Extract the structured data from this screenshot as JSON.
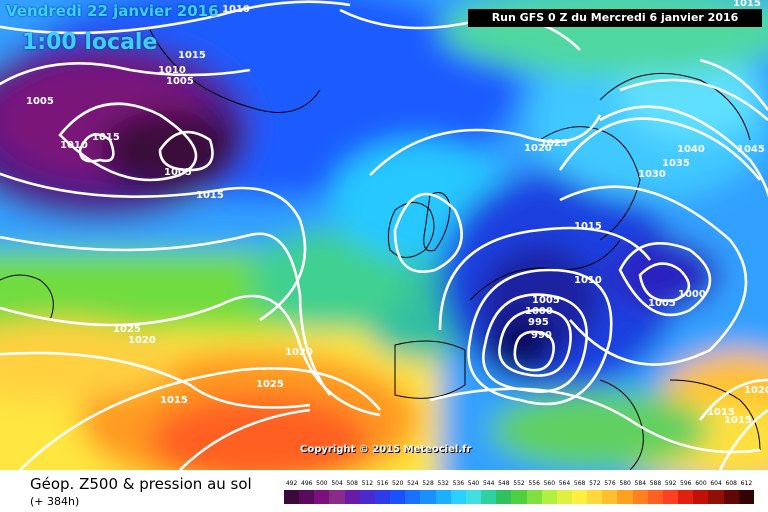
{
  "header": {
    "date_label": "Vendredi 22 janvier 2016",
    "time_label": "1:00 locale",
    "run_label": "Run GFS 0 Z du Mercredi 6 janvier 2016"
  },
  "copyright": "Copyright © 2015 Meteociel.fr",
  "footer": {
    "title": "Géop. Z500 & pression au sol",
    "subtitle": "(+ 384h)"
  },
  "isobar_labels": [
    "1010",
    "1015",
    "1010",
    "1005",
    "1005",
    "1010",
    "1015",
    "1005",
    "1015",
    "1025",
    "1020",
    "1020",
    "1015",
    "1025",
    "1020",
    "1025",
    "1015",
    "1010",
    "1005",
    "1000",
    "995",
    "990",
    "1005",
    "1000",
    "1040",
    "1045",
    "1035",
    "1030",
    "1020",
    "1015",
    "1015",
    "1015"
  ],
  "legend": {
    "values": [
      "492",
      "496",
      "500",
      "504",
      "508",
      "512",
      "516",
      "520",
      "524",
      "528",
      "532",
      "536",
      "540",
      "544",
      "548",
      "552",
      "556",
      "560",
      "564",
      "568",
      "572",
      "576",
      "580",
      "584",
      "588",
      "592",
      "596",
      "600",
      "604",
      "608",
      "612"
    ],
    "colors": [
      "#3b0a3a",
      "#5a0a5a",
      "#7a107a",
      "#8a2a8a",
      "#6a1aa8",
      "#4a2ad0",
      "#2f3ae8",
      "#1a50ff",
      "#1a70ff",
      "#1a90ff",
      "#1ab0ff",
      "#2ad0ff",
      "#40e0e0",
      "#30d0a0",
      "#30c060",
      "#50d040",
      "#80e040",
      "#b0f040",
      "#e0f040",
      "#fff040",
      "#ffd840",
      "#ffc030",
      "#ffa020",
      "#ff8020",
      "#ff6020",
      "#ff4020",
      "#e02010",
      "#c01008",
      "#901008",
      "#600808",
      "#300404"
    ]
  }
}
